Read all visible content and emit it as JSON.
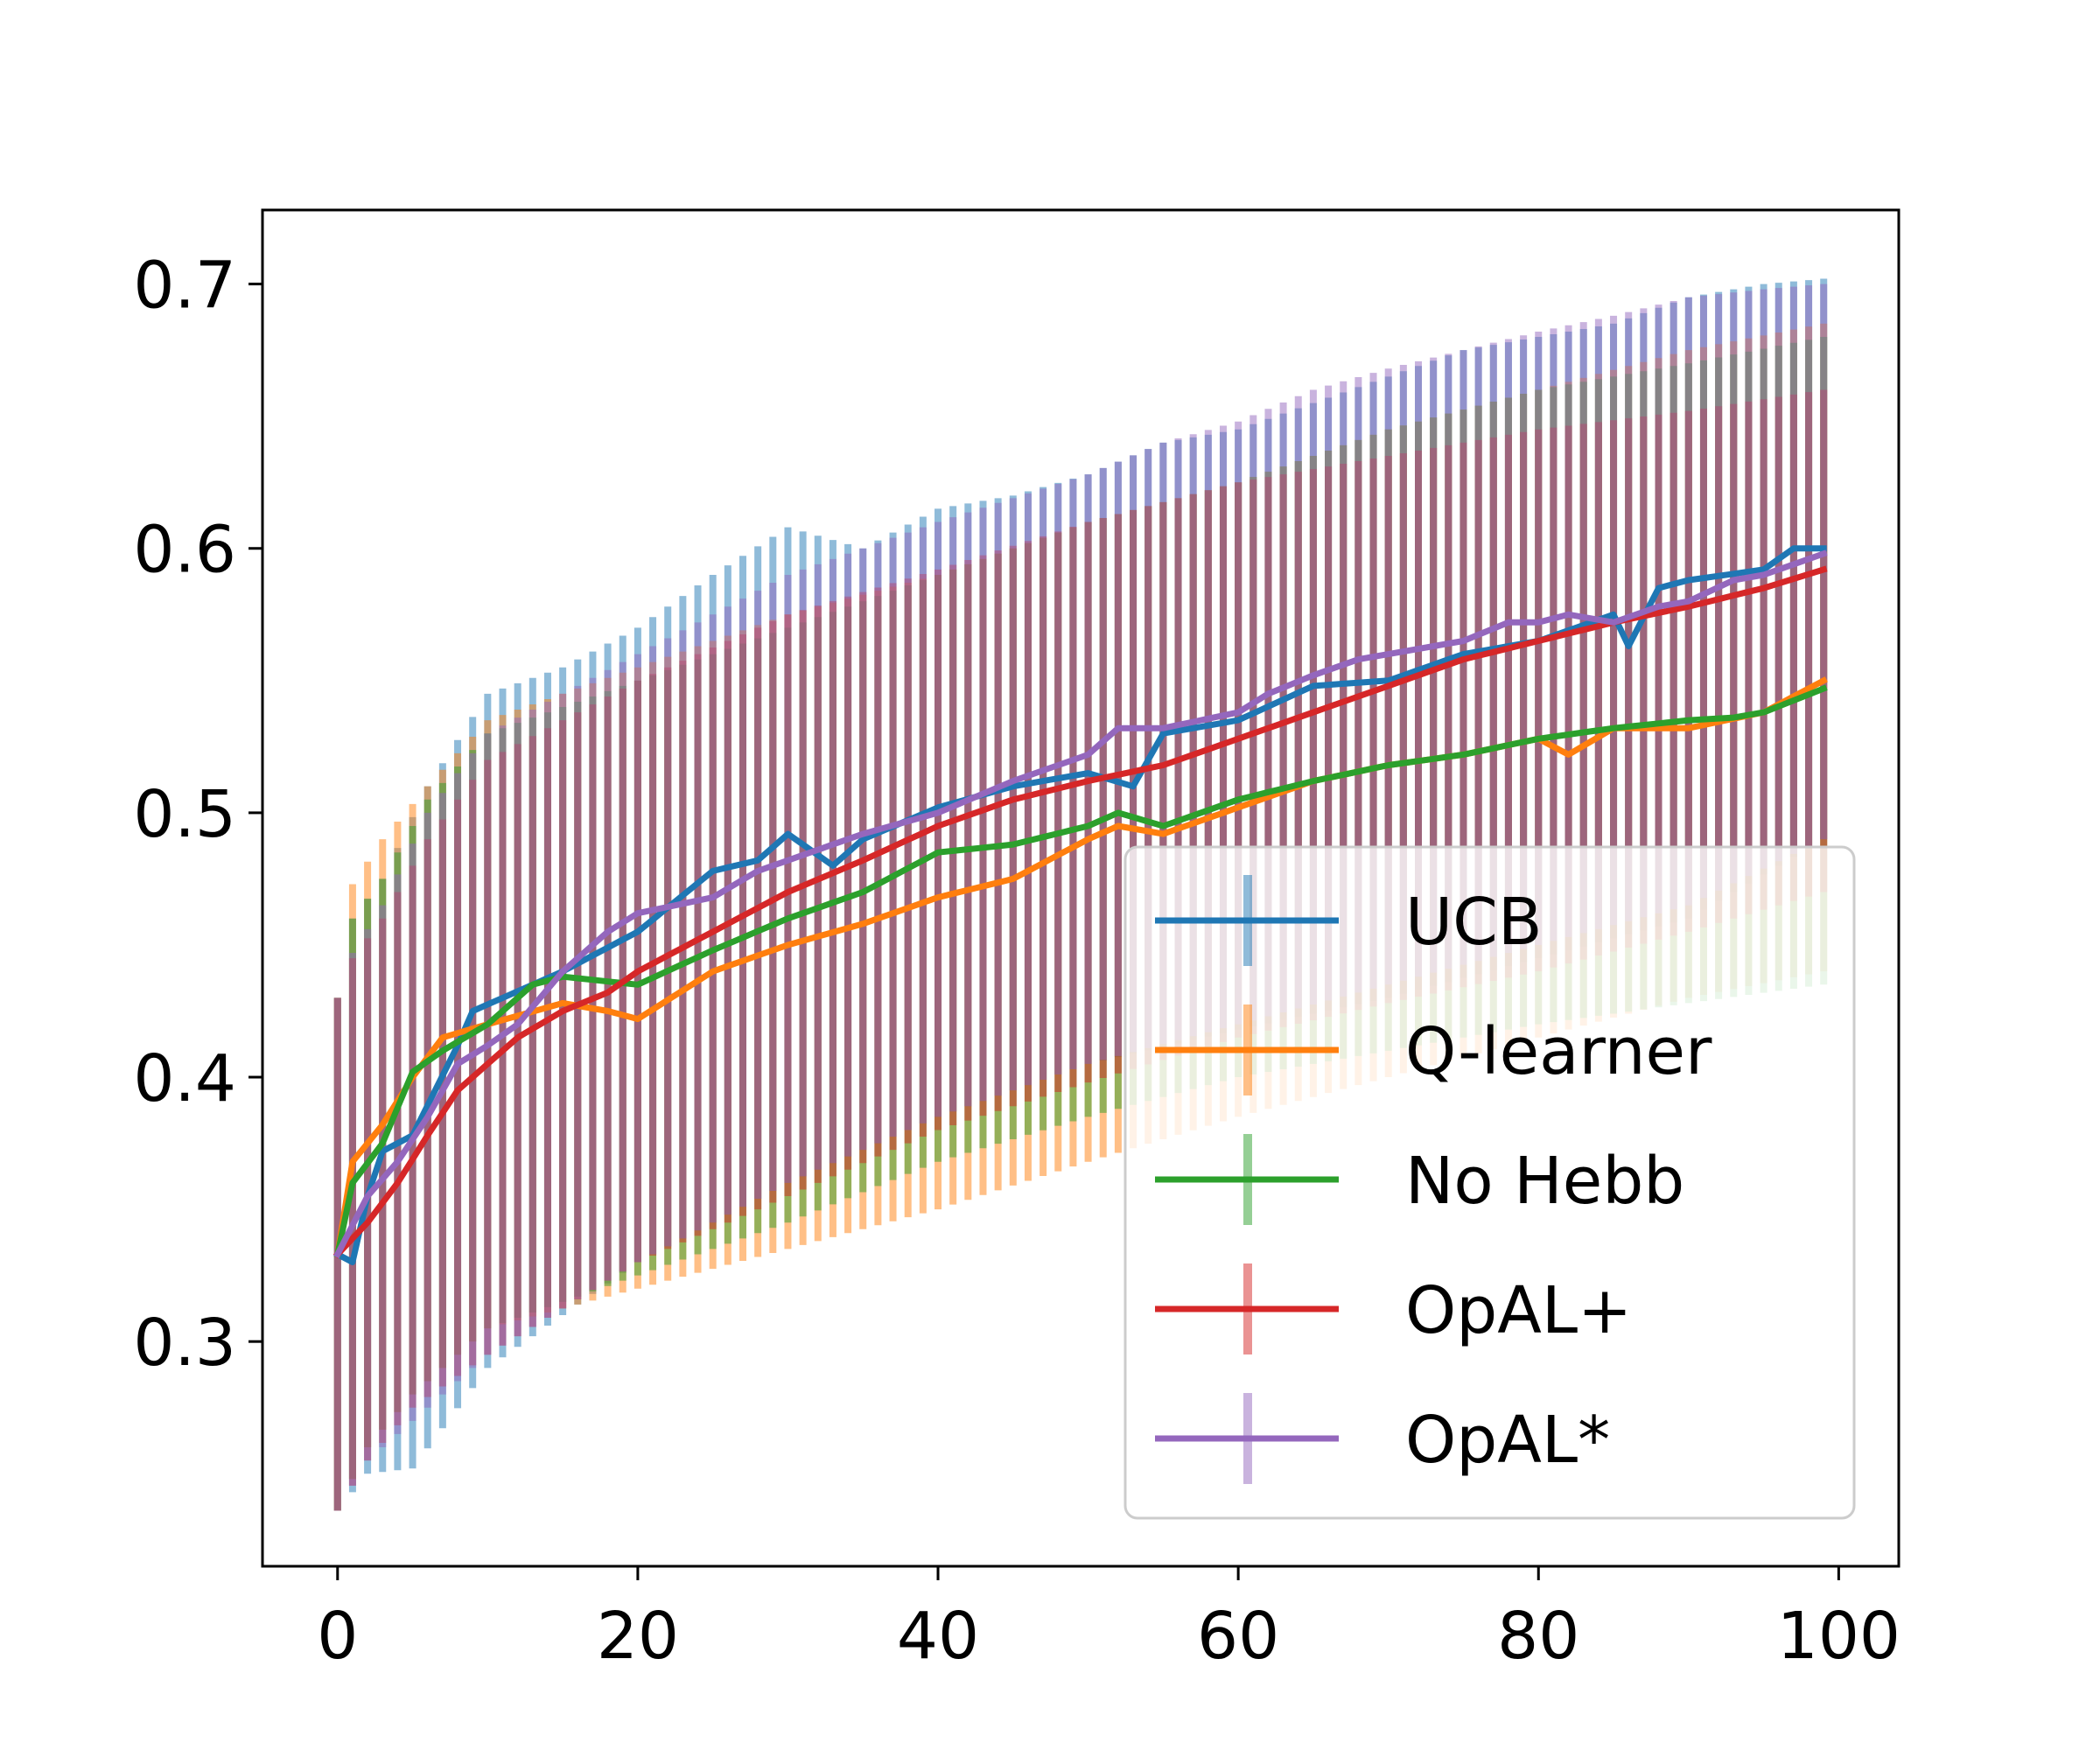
{
  "chart_data": {
    "type": "line",
    "title": "",
    "xlabel": "",
    "ylabel": "",
    "xlim": [
      -5,
      104
    ],
    "ylim": [
      0.215,
      0.728
    ],
    "xticks": [
      0,
      20,
      40,
      60,
      80,
      100
    ],
    "yticks": [
      0.3,
      0.4,
      0.5,
      0.6,
      0.7
    ],
    "xtick_labels": [
      "0",
      "20",
      "40",
      "60",
      "80",
      "100"
    ],
    "ytick_labels": [
      "0.3",
      "0.4",
      "0.5",
      "0.6",
      "0.7"
    ],
    "grid": false,
    "legend": "lower-right",
    "error_bars": true,
    "x_range": [
      0,
      99
    ],
    "series": [
      {
        "name": "UCB",
        "color": "#1f77b4",
        "key_points": [
          [
            0,
            0.333
          ],
          [
            1,
            0.33
          ],
          [
            2,
            0.355
          ],
          [
            3,
            0.372
          ],
          [
            5,
            0.378
          ],
          [
            8,
            0.412
          ],
          [
            9,
            0.425
          ],
          [
            11,
            0.43
          ],
          [
            15,
            0.44
          ],
          [
            20,
            0.455
          ],
          [
            25,
            0.478
          ],
          [
            28,
            0.482
          ],
          [
            30,
            0.492
          ],
          [
            33,
            0.48
          ],
          [
            35,
            0.49
          ],
          [
            40,
            0.502
          ],
          [
            45,
            0.51
          ],
          [
            50,
            0.515
          ],
          [
            53,
            0.51
          ],
          [
            55,
            0.53
          ],
          [
            60,
            0.535
          ],
          [
            65,
            0.548
          ],
          [
            70,
            0.55
          ],
          [
            75,
            0.56
          ],
          [
            80,
            0.565
          ],
          [
            85,
            0.575
          ],
          [
            86,
            0.563
          ],
          [
            88,
            0.585
          ],
          [
            90,
            0.588
          ],
          [
            95,
            0.592
          ],
          [
            97,
            0.6
          ],
          [
            99,
            0.6
          ]
        ],
        "err_lower": [
          [
            0,
            0.236
          ],
          [
            2,
            0.25
          ],
          [
            5,
            0.252
          ],
          [
            10,
            0.29
          ],
          [
            20,
            0.33
          ],
          [
            30,
            0.36
          ],
          [
            40,
            0.385
          ],
          [
            50,
            0.405
          ],
          [
            60,
            0.418
          ],
          [
            70,
            0.43
          ],
          [
            80,
            0.445
          ],
          [
            90,
            0.46
          ],
          [
            99,
            0.49
          ]
        ],
        "err_upper": [
          [
            0,
            0.43
          ],
          [
            1,
            0.46
          ],
          [
            3,
            0.475
          ],
          [
            6,
            0.51
          ],
          [
            10,
            0.545
          ],
          [
            15,
            0.555
          ],
          [
            20,
            0.57
          ],
          [
            25,
            0.59
          ],
          [
            30,
            0.608
          ],
          [
            35,
            0.6
          ],
          [
            40,
            0.615
          ],
          [
            45,
            0.62
          ],
          [
            50,
            0.628
          ],
          [
            55,
            0.64
          ],
          [
            60,
            0.645
          ],
          [
            65,
            0.655
          ],
          [
            70,
            0.665
          ],
          [
            75,
            0.675
          ],
          [
            80,
            0.68
          ],
          [
            85,
            0.685
          ],
          [
            90,
            0.695
          ],
          [
            95,
            0.7
          ],
          [
            99,
            0.702
          ]
        ]
      },
      {
        "name": "Q-learner",
        "color": "#ff7f0e",
        "key_points": [
          [
            0,
            0.333
          ],
          [
            1,
            0.368
          ],
          [
            3,
            0.382
          ],
          [
            5,
            0.4
          ],
          [
            7,
            0.415
          ],
          [
            10,
            0.42
          ],
          [
            15,
            0.428
          ],
          [
            18,
            0.425
          ],
          [
            20,
            0.422
          ],
          [
            25,
            0.44
          ],
          [
            30,
            0.45
          ],
          [
            35,
            0.458
          ],
          [
            40,
            0.468
          ],
          [
            45,
            0.475
          ],
          [
            50,
            0.49
          ],
          [
            52,
            0.495
          ],
          [
            55,
            0.492
          ],
          [
            60,
            0.502
          ],
          [
            65,
            0.512
          ],
          [
            70,
            0.518
          ],
          [
            75,
            0.522
          ],
          [
            80,
            0.528
          ],
          [
            82,
            0.522
          ],
          [
            85,
            0.532
          ],
          [
            90,
            0.532
          ],
          [
            95,
            0.538
          ],
          [
            99,
            0.55
          ]
        ],
        "err_lower": [
          [
            0,
            0.236
          ],
          [
            2,
            0.26
          ],
          [
            5,
            0.28
          ],
          [
            10,
            0.305
          ],
          [
            20,
            0.32
          ],
          [
            30,
            0.335
          ],
          [
            40,
            0.35
          ],
          [
            50,
            0.368
          ],
          [
            60,
            0.385
          ],
          [
            70,
            0.4
          ],
          [
            80,
            0.415
          ],
          [
            90,
            0.43
          ],
          [
            99,
            0.44
          ]
        ],
        "err_upper": [
          [
            0,
            0.43
          ],
          [
            1,
            0.473
          ],
          [
            3,
            0.49
          ],
          [
            6,
            0.51
          ],
          [
            10,
            0.535
          ],
          [
            20,
            0.555
          ],
          [
            30,
            0.575
          ],
          [
            40,
            0.59
          ],
          [
            50,
            0.61
          ],
          [
            60,
            0.625
          ],
          [
            70,
            0.645
          ],
          [
            80,
            0.66
          ],
          [
            90,
            0.675
          ],
          [
            99,
            0.685
          ]
        ]
      },
      {
        "name": "No Hebb",
        "color": "#2ca02c",
        "key_points": [
          [
            0,
            0.333
          ],
          [
            1,
            0.36
          ],
          [
            3,
            0.375
          ],
          [
            5,
            0.402
          ],
          [
            7,
            0.41
          ],
          [
            10,
            0.42
          ],
          [
            13,
            0.435
          ],
          [
            15,
            0.438
          ],
          [
            20,
            0.435
          ],
          [
            25,
            0.448
          ],
          [
            30,
            0.46
          ],
          [
            35,
            0.47
          ],
          [
            40,
            0.485
          ],
          [
            45,
            0.488
          ],
          [
            50,
            0.495
          ],
          [
            52,
            0.5
          ],
          [
            55,
            0.495
          ],
          [
            60,
            0.505
          ],
          [
            65,
            0.512
          ],
          [
            70,
            0.518
          ],
          [
            75,
            0.522
          ],
          [
            80,
            0.528
          ],
          [
            85,
            0.532
          ],
          [
            90,
            0.535
          ],
          [
            93,
            0.536
          ],
          [
            95,
            0.538
          ],
          [
            99,
            0.547
          ]
        ],
        "err_lower": [
          [
            0,
            0.236
          ],
          [
            2,
            0.26
          ],
          [
            5,
            0.28
          ],
          [
            10,
            0.305
          ],
          [
            20,
            0.325
          ],
          [
            30,
            0.345
          ],
          [
            40,
            0.368
          ],
          [
            50,
            0.385
          ],
          [
            60,
            0.4
          ],
          [
            70,
            0.41
          ],
          [
            80,
            0.42
          ],
          [
            90,
            0.428
          ],
          [
            99,
            0.435
          ]
        ],
        "err_upper": [
          [
            0,
            0.43
          ],
          [
            1,
            0.46
          ],
          [
            3,
            0.475
          ],
          [
            6,
            0.505
          ],
          [
            10,
            0.53
          ],
          [
            20,
            0.55
          ],
          [
            30,
            0.57
          ],
          [
            40,
            0.59
          ],
          [
            50,
            0.61
          ],
          [
            60,
            0.625
          ],
          [
            70,
            0.645
          ],
          [
            80,
            0.66
          ],
          [
            90,
            0.67
          ],
          [
            99,
            0.68
          ]
        ]
      },
      {
        "name": "OpAL+",
        "color": "#d62728",
        "key_points": [
          [
            0,
            0.333
          ],
          [
            2,
            0.345
          ],
          [
            4,
            0.36
          ],
          [
            6,
            0.378
          ],
          [
            8,
            0.395
          ],
          [
            10,
            0.405
          ],
          [
            12,
            0.415
          ],
          [
            15,
            0.425
          ],
          [
            18,
            0.432
          ],
          [
            20,
            0.44
          ],
          [
            25,
            0.455
          ],
          [
            30,
            0.47
          ],
          [
            35,
            0.482
          ],
          [
            40,
            0.495
          ],
          [
            45,
            0.505
          ],
          [
            50,
            0.512
          ],
          [
            55,
            0.518
          ],
          [
            60,
            0.528
          ],
          [
            65,
            0.538
          ],
          [
            70,
            0.548
          ],
          [
            75,
            0.558
          ],
          [
            80,
            0.565
          ],
          [
            85,
            0.572
          ],
          [
            90,
            0.578
          ],
          [
            95,
            0.585
          ],
          [
            99,
            0.592
          ]
        ],
        "err_lower": [
          [
            0,
            0.236
          ],
          [
            2,
            0.255
          ],
          [
            5,
            0.275
          ],
          [
            10,
            0.295
          ],
          [
            20,
            0.33
          ],
          [
            30,
            0.355
          ],
          [
            40,
            0.38
          ],
          [
            50,
            0.398
          ],
          [
            60,
            0.415
          ],
          [
            70,
            0.428
          ],
          [
            80,
            0.44
          ],
          [
            90,
            0.455
          ],
          [
            99,
            0.47
          ]
        ],
        "err_upper": [
          [
            0,
            0.43
          ],
          [
            1,
            0.445
          ],
          [
            3,
            0.46
          ],
          [
            6,
            0.49
          ],
          [
            10,
            0.52
          ],
          [
            20,
            0.55
          ],
          [
            30,
            0.575
          ],
          [
            40,
            0.592
          ],
          [
            50,
            0.61
          ],
          [
            60,
            0.625
          ],
          [
            70,
            0.635
          ],
          [
            80,
            0.645
          ],
          [
            90,
            0.652
          ],
          [
            99,
            0.66
          ]
        ]
      },
      {
        "name": "OpAL*",
        "color": "#9467bd",
        "key_points": [
          [
            0,
            0.333
          ],
          [
            2,
            0.355
          ],
          [
            4,
            0.368
          ],
          [
            6,
            0.385
          ],
          [
            8,
            0.405
          ],
          [
            10,
            0.412
          ],
          [
            12,
            0.42
          ],
          [
            15,
            0.44
          ],
          [
            18,
            0.455
          ],
          [
            20,
            0.462
          ],
          [
            25,
            0.468
          ],
          [
            28,
            0.478
          ],
          [
            30,
            0.482
          ],
          [
            35,
            0.492
          ],
          [
            40,
            0.5
          ],
          [
            45,
            0.512
          ],
          [
            50,
            0.522
          ],
          [
            52,
            0.532
          ],
          [
            55,
            0.532
          ],
          [
            60,
            0.538
          ],
          [
            62,
            0.545
          ],
          [
            65,
            0.552
          ],
          [
            68,
            0.558
          ],
          [
            70,
            0.56
          ],
          [
            75,
            0.565
          ],
          [
            78,
            0.572
          ],
          [
            80,
            0.572
          ],
          [
            82,
            0.575
          ],
          [
            85,
            0.572
          ],
          [
            88,
            0.578
          ],
          [
            90,
            0.58
          ],
          [
            93,
            0.588
          ],
          [
            95,
            0.59
          ],
          [
            99,
            0.598
          ]
        ],
        "err_lower": [
          [
            0,
            0.236
          ],
          [
            2,
            0.255
          ],
          [
            5,
            0.27
          ],
          [
            10,
            0.295
          ],
          [
            20,
            0.33
          ],
          [
            30,
            0.36
          ],
          [
            40,
            0.385
          ],
          [
            50,
            0.405
          ],
          [
            60,
            0.42
          ],
          [
            70,
            0.435
          ],
          [
            80,
            0.45
          ],
          [
            90,
            0.465
          ],
          [
            99,
            0.49
          ]
        ],
        "err_upper": [
          [
            0,
            0.43
          ],
          [
            1,
            0.447
          ],
          [
            3,
            0.465
          ],
          [
            6,
            0.5
          ],
          [
            10,
            0.53
          ],
          [
            15,
            0.545
          ],
          [
            20,
            0.56
          ],
          [
            25,
            0.575
          ],
          [
            30,
            0.59
          ],
          [
            40,
            0.61
          ],
          [
            50,
            0.628
          ],
          [
            55,
            0.64
          ],
          [
            60,
            0.648
          ],
          [
            65,
            0.66
          ],
          [
            70,
            0.668
          ],
          [
            75,
            0.675
          ],
          [
            80,
            0.682
          ],
          [
            85,
            0.688
          ],
          [
            90,
            0.695
          ],
          [
            95,
            0.698
          ],
          [
            99,
            0.7
          ]
        ]
      }
    ]
  }
}
